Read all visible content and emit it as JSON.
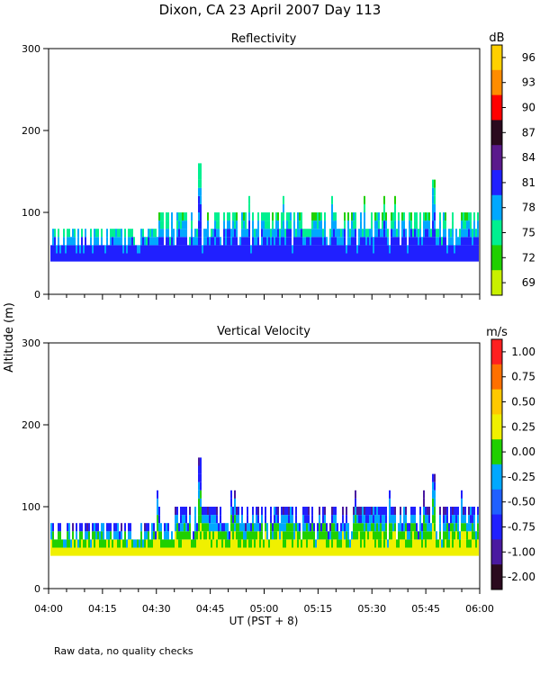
{
  "title": "Dixon, CA 23 April 2007  Day 113",
  "footnote": "Raw data, no quality checks",
  "chart_data": [
    {
      "type": "heatmap",
      "title": "Reflectivity",
      "ylabel": "Altitude (m)",
      "xlabel": "UT  (PST + 8)",
      "ylim": [
        0,
        300
      ],
      "yticks": [
        "0",
        "100",
        "200",
        "300"
      ],
      "xticks": [
        "04:00",
        "04:15",
        "04:30",
        "04:45",
        "05:00",
        "05:15",
        "05:30",
        "05:45",
        "06:00"
      ],
      "colorbar_unit": "dB",
      "colorbar_labels": [
        "96",
        "93",
        "90",
        "87",
        "84",
        "81",
        "78",
        "75",
        "72",
        "69"
      ],
      "colorbar_colors": [
        "#ffd000",
        "#ff8c00",
        "#ff0000",
        "#2a0a1e",
        "#5a1a8c",
        "#2020ff",
        "#00a8ff",
        "#00f090",
        "#20d000",
        "#c8f000"
      ],
      "columns": [
        {
          "start": "04:00",
          "end": "04:30",
          "cloud_base_m": 40,
          "max_top_m": 80
        },
        {
          "start": "04:30",
          "end": "06:00",
          "cloud_base_m": 40,
          "max_top_m": 100
        },
        {
          "time": "04:42",
          "spike_top_m": 160
        },
        {
          "time": "05:47",
          "spike_top_m": 140
        }
      ]
    },
    {
      "type": "heatmap",
      "title": "Vertical Velocity",
      "ylim": [
        0,
        300
      ],
      "yticks": [
        "0",
        "100",
        "200",
        "300"
      ],
      "xticks": [
        "04:00",
        "04:15",
        "04:30",
        "04:45",
        "05:00",
        "05:15",
        "05:30",
        "05:45",
        "06:00"
      ],
      "colorbar_unit": "m/s",
      "colorbar_labels": [
        "1.00",
        "0.75",
        "0.50",
        "0.25",
        "0.00",
        "-0.25",
        "-0.50",
        "-0.75",
        "-1.00",
        "-2.00"
      ],
      "colorbar_colors": [
        "#ff2020",
        "#ff7000",
        "#ffc800",
        "#f0f000",
        "#20d000",
        "#00a8ff",
        "#2060ff",
        "#2020ff",
        "#4a1aa0",
        "#2a0a1e"
      ],
      "columns": [
        {
          "start": "04:00",
          "end": "04:30",
          "cloud_base_m": 40,
          "max_top_m": 80
        },
        {
          "start": "04:30",
          "end": "06:00",
          "cloud_base_m": 40,
          "max_top_m": 100
        },
        {
          "time": "04:42",
          "spike_top_m": 160
        },
        {
          "time": "05:47",
          "spike_top_m": 140
        }
      ]
    }
  ]
}
